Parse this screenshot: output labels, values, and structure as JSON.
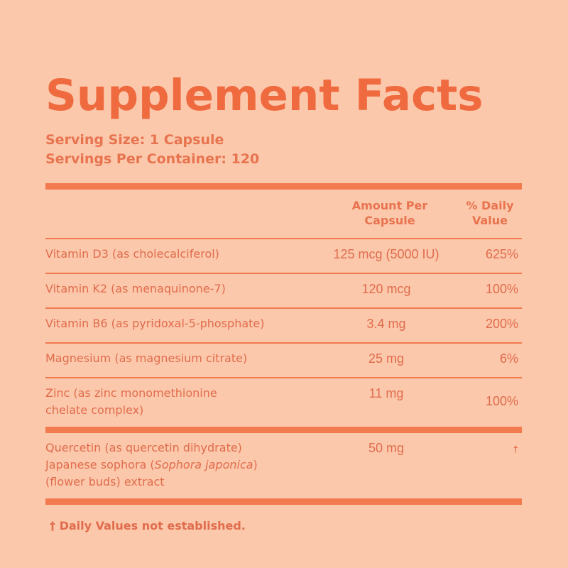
{
  "title": "Supplement Facts",
  "serving_size": "Serving Size: 1 Capsule",
  "servings_per_container": "Servings Per Container: 120",
  "columns": {
    "amount_line1": "Amount Per",
    "amount_line2": "Capsule",
    "daily_line1": "% Daily",
    "daily_line2": "Value"
  },
  "rows": [
    {
      "name": "Vitamin D3 (as cholecalciferol)",
      "amount": "125 mcg (5000 IU)",
      "daily": "625%"
    },
    {
      "name": "Vitamin K2 (as menaquinone-7)",
      "amount": "120 mcg",
      "daily": "100%"
    },
    {
      "name": "Vitamin B6 (as pyridoxal-5-phosphate)",
      "amount": "3.4 mg",
      "daily": "200%"
    },
    {
      "name": "Magnesium (as magnesium citrate)",
      "amount": "25 mg",
      "daily": "6%"
    },
    {
      "name_line1": "Zinc (as zinc monomethionine",
      "name_line2": "chelate complex)",
      "amount": "11 mg",
      "daily": "100%"
    }
  ],
  "other": {
    "line1": "Quercetin (as quercetin dihydrate)",
    "line2_prefix": "Japanese sophora (",
    "line2_italic": "Sophora japonica",
    "line2_suffix": ")",
    "line3": "(flower buds) extract",
    "amount": "50 mg",
    "daily": "†"
  },
  "footnote": "† Daily Values not established.",
  "colors": {
    "background": "#fcc8ab",
    "accent": "#ef6a3f",
    "text": "#e06c4d"
  }
}
